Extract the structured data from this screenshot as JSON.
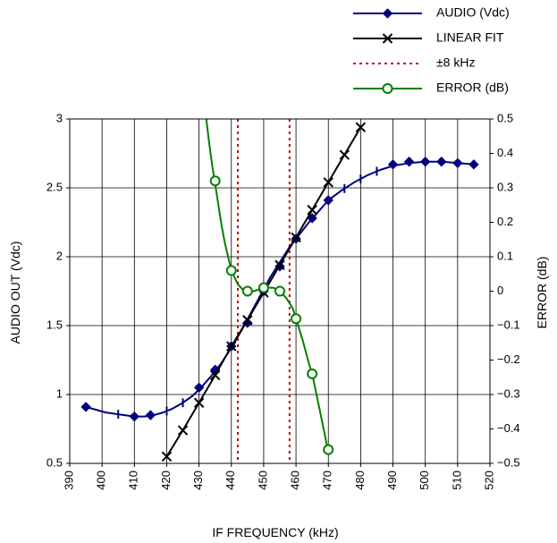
{
  "chart_data": {
    "type": "line",
    "title": "",
    "xlabel": "IF FREQUENCY (kHz)",
    "ylabel_left": "AUDIO OUT (Vdc)",
    "ylabel_right": "ERROR (dB)",
    "xlim": [
      390,
      520
    ],
    "ylim_left": [
      0.5,
      3
    ],
    "ylim_right": [
      -0.5,
      0.5
    ],
    "x_ticks": [
      390,
      400,
      410,
      420,
      430,
      440,
      450,
      460,
      470,
      480,
      490,
      500,
      510,
      520
    ],
    "y_left_ticks": [
      "0.5",
      "1",
      "1.5",
      "2",
      "2.5",
      "3"
    ],
    "y_left_tick_values": [
      0.5,
      1,
      1.5,
      2,
      2.5,
      3
    ],
    "y_right_ticks": [
      "-0.5",
      "-0.4",
      "-0.3",
      "-0.2",
      "-0.1",
      "0",
      "0.1",
      "0.2",
      "0.3",
      "0.4",
      "0.5"
    ],
    "y_right_tick_values": [
      -0.5,
      -0.4,
      -0.3,
      -0.2,
      -0.1,
      0,
      0.1,
      0.2,
      0.3,
      0.4,
      0.5
    ],
    "grid": true,
    "legend_position": "top-right",
    "series": [
      {
        "name": "AUDIO (Vdc)",
        "axis": "left",
        "color": "#000080",
        "marker": "diamond",
        "x": [
          395,
          410,
          415,
          430,
          435,
          440,
          445,
          450,
          455,
          460,
          465,
          470,
          490,
          495,
          500,
          505,
          510,
          515
        ],
        "y": [
          0.91,
          0.84,
          0.85,
          1.05,
          1.18,
          1.35,
          1.52,
          1.75,
          1.93,
          2.13,
          2.28,
          2.41,
          2.67,
          2.69,
          2.69,
          2.69,
          2.68,
          2.67
        ],
        "curve_x": [
          395,
          398,
          401,
          404,
          407,
          410,
          413,
          416,
          419,
          422,
          425,
          428,
          431,
          434,
          437,
          440,
          443,
          446,
          449,
          452,
          455,
          458,
          461,
          464,
          467,
          470,
          474,
          478,
          482,
          486,
          490,
          495,
          500,
          505,
          510,
          515
        ],
        "curve_y": [
          0.91,
          0.89,
          0.87,
          0.86,
          0.85,
          0.84,
          0.84,
          0.85,
          0.87,
          0.9,
          0.94,
          0.99,
          1.06,
          1.14,
          1.23,
          1.34,
          1.46,
          1.59,
          1.72,
          1.85,
          1.96,
          2.07,
          2.16,
          2.25,
          2.33,
          2.41,
          2.48,
          2.54,
          2.59,
          2.63,
          2.66,
          2.68,
          2.69,
          2.69,
          2.68,
          2.67
        ],
        "tick_x": [
          405,
          420,
          425,
          475,
          480,
          485
        ]
      },
      {
        "name": "LINEAR FIT",
        "axis": "left",
        "color": "#000000",
        "marker": "x",
        "x": [
          420,
          425,
          430,
          435,
          440,
          445,
          450,
          455,
          460,
          465,
          470,
          475,
          480
        ],
        "y": [
          0.55,
          0.74,
          0.94,
          1.14,
          1.35,
          1.54,
          1.74,
          1.94,
          2.14,
          2.34,
          2.54,
          2.74,
          2.94
        ]
      },
      {
        "name": "±8 kHz",
        "axis": "left",
        "color": "#cc0000",
        "marker": "none",
        "style": "dotted",
        "x_lines": [
          442,
          458
        ]
      },
      {
        "name": "ERROR (dB)",
        "axis": "right",
        "color": "#008000",
        "marker": "circle",
        "x": [
          435,
          440,
          445,
          450,
          455,
          460,
          465,
          470
        ],
        "y": [
          0.32,
          0.06,
          0.0,
          0.01,
          0.0,
          -0.08,
          -0.24,
          -0.46
        ],
        "curve_x": [
          432,
          433,
          434,
          435,
          436,
          437,
          438,
          439,
          440,
          441,
          442,
          443,
          444,
          445,
          447,
          450,
          453,
          455,
          457,
          459,
          460,
          462,
          464,
          465,
          467,
          469,
          470
        ],
        "curve_y": [
          0.52,
          0.44,
          0.37,
          0.31,
          0.25,
          0.19,
          0.14,
          0.1,
          0.06,
          0.04,
          0.02,
          0.01,
          0.0,
          0.0,
          0.0,
          0.01,
          0.01,
          0.0,
          -0.02,
          -0.05,
          -0.08,
          -0.14,
          -0.21,
          -0.24,
          -0.33,
          -0.42,
          -0.47
        ]
      }
    ]
  }
}
